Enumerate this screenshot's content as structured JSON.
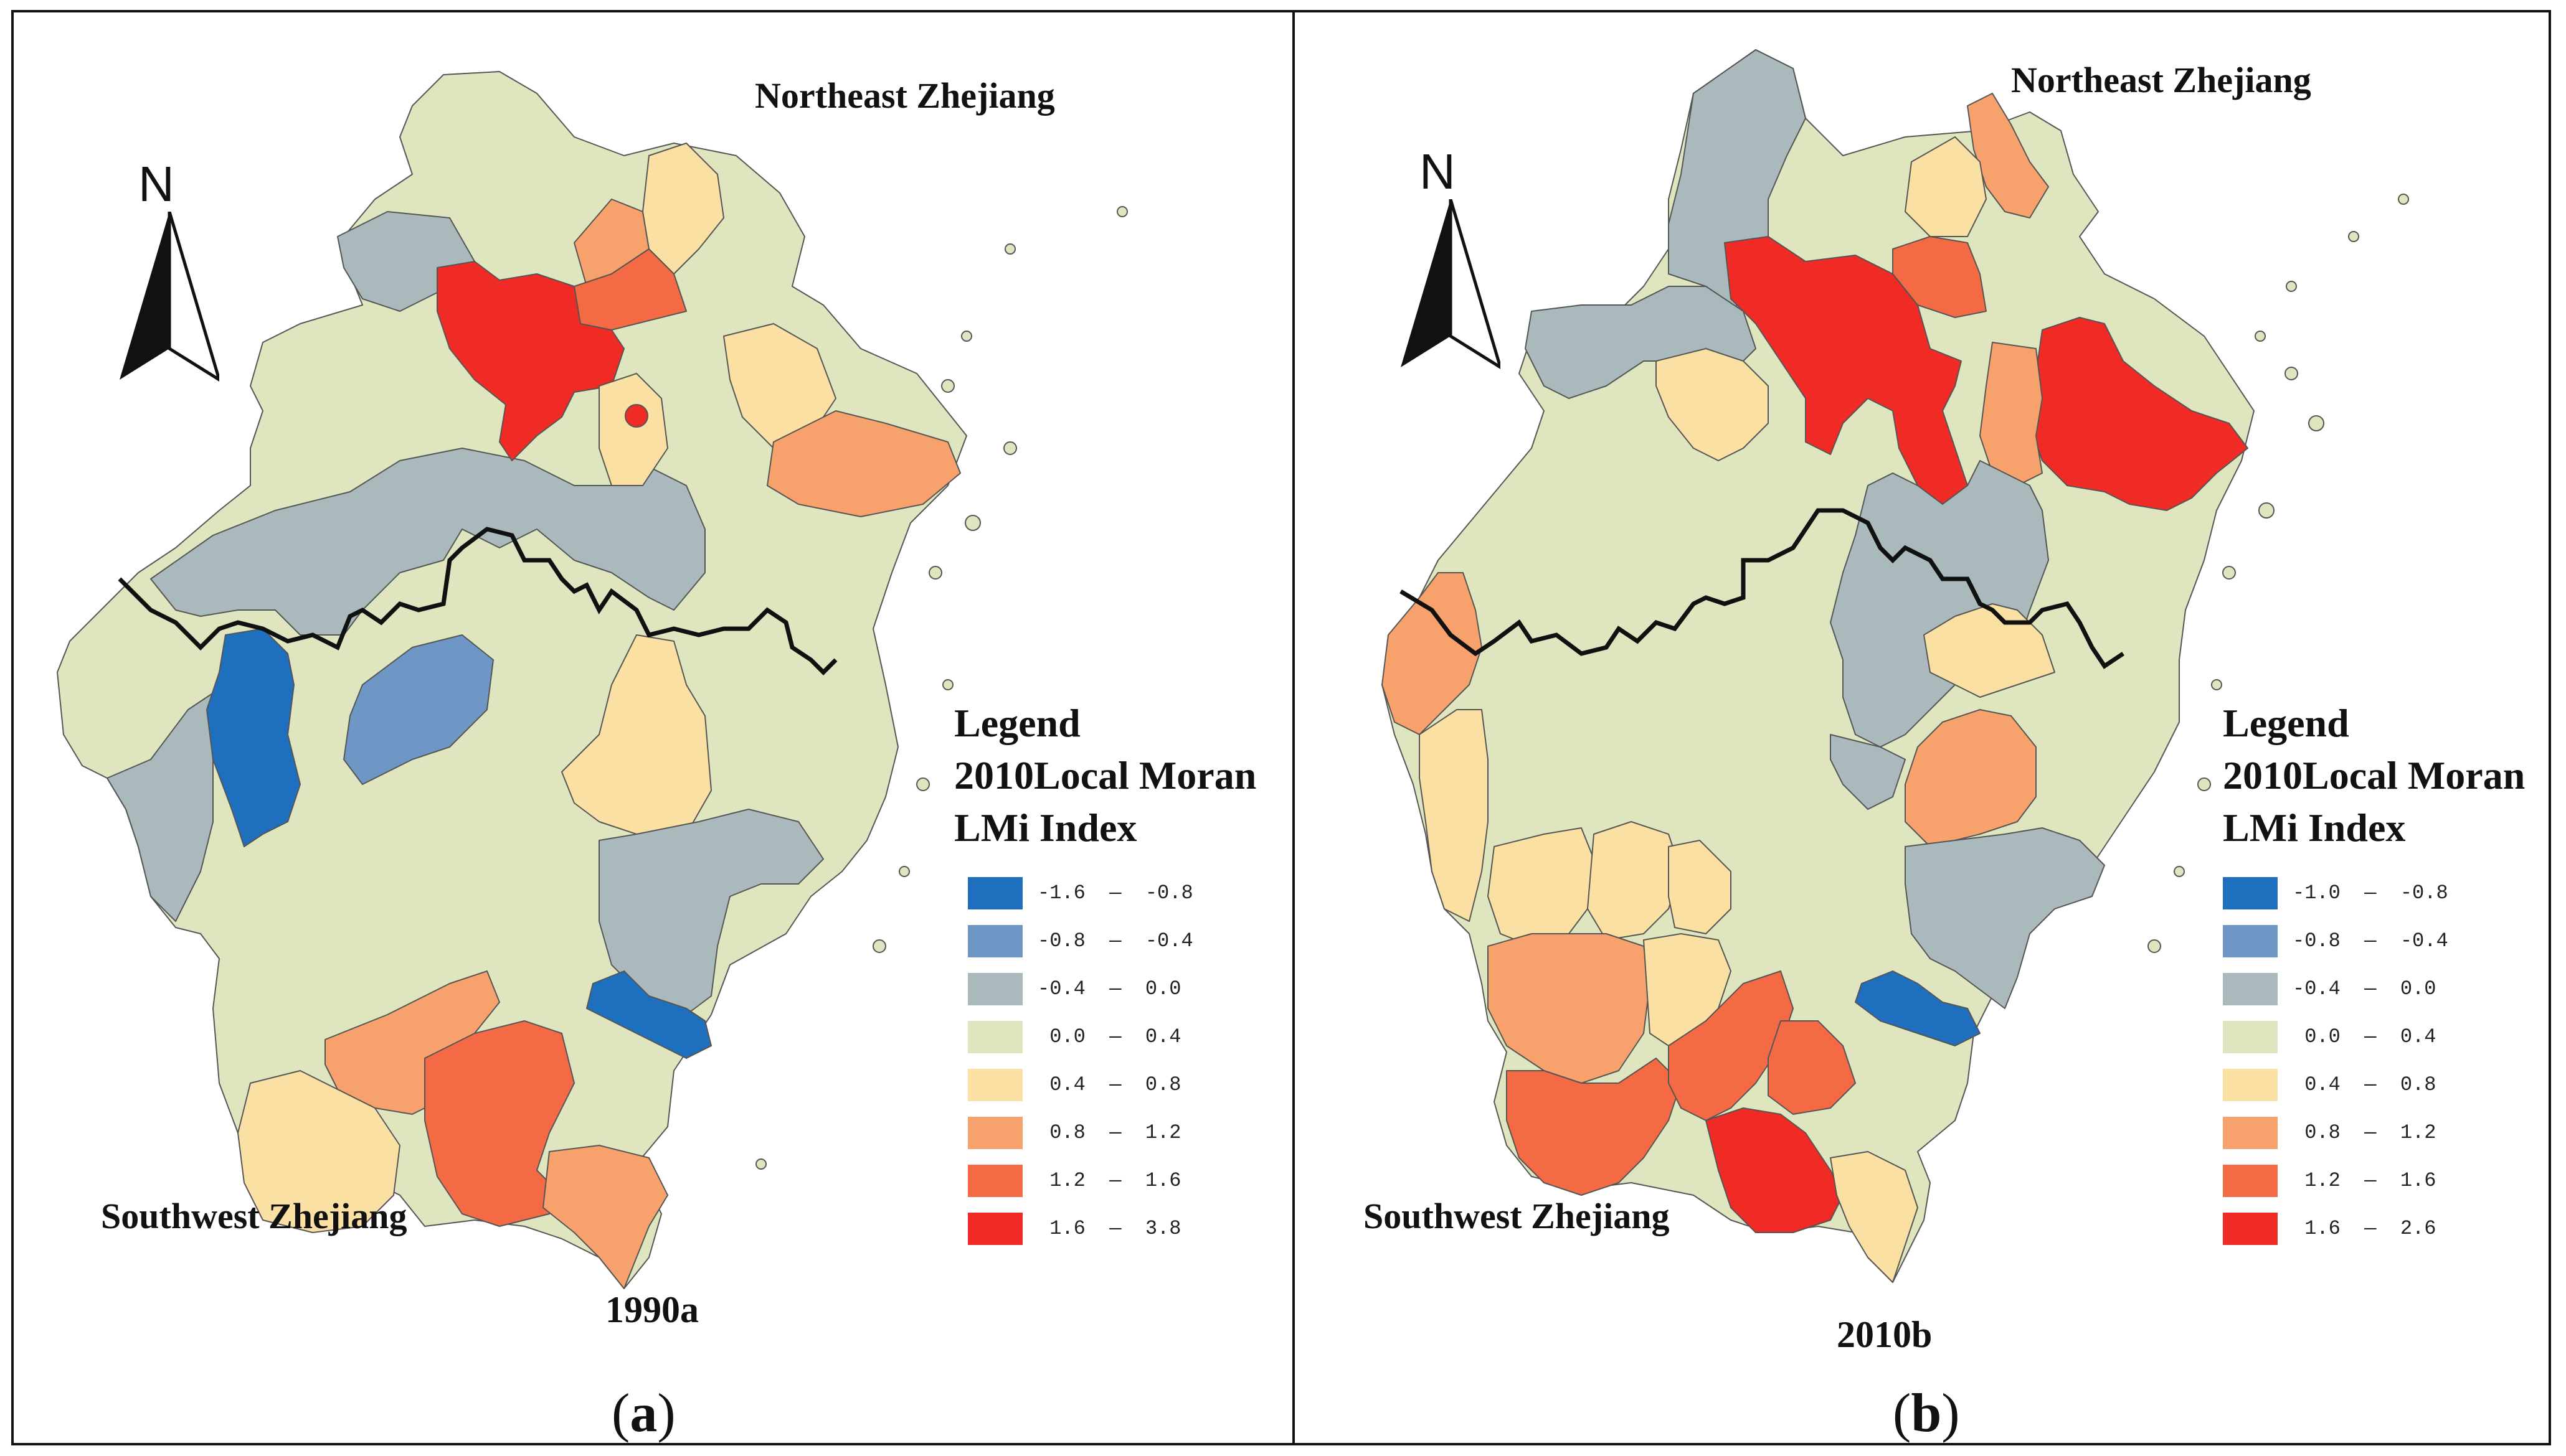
{
  "colors": {
    "c1": "#1f6fbf",
    "c2": "#6f97c6",
    "c3": "#a9b9bc",
    "c4": "#dfe6bf",
    "c5": "#fbe0a3",
    "c6": "#f7a26c",
    "c7": "#f46a44",
    "c8": "#f02a25",
    "border": "#111111"
  },
  "panels": [
    {
      "region_ne": "Northeast Zhejiang",
      "region_sw": "Southwest Zhejiang",
      "year": "1990a",
      "letter_open": "(",
      "letter": "a",
      "letter_close": ")",
      "north": "N",
      "legend": {
        "title1": "Legend",
        "title2": "2010Local Moran",
        "title3": "LMi Index",
        "classes": [
          {
            "range": "-1.6  —  -0.8",
            "color": "#1f6fbf"
          },
          {
            "range": "-0.8  —  -0.4",
            "color": "#6f97c6"
          },
          {
            "range": "-0.4  —  0.0",
            "color": "#a9b9bc"
          },
          {
            "range": " 0.0  —  0.4",
            "color": "#dfe6bf"
          },
          {
            "range": " 0.4  —  0.8",
            "color": "#fbe0a3"
          },
          {
            "range": " 0.8  —  1.2",
            "color": "#f7a26c"
          },
          {
            "range": " 1.2  —  1.6",
            "color": "#f46a44"
          },
          {
            "range": " 1.6  —  3.8",
            "color": "#f02a25"
          }
        ]
      }
    },
    {
      "region_ne": "Northeast Zhejiang",
      "region_sw": "Southwest Zhejiang",
      "year": "2010b",
      "letter_open": "(",
      "letter": "b",
      "letter_close": ")",
      "north": "N",
      "legend": {
        "title1": "Legend",
        "title2": "2010Local Moran",
        "title3": "LMi Index",
        "classes": [
          {
            "range": "-1.0  —  -0.8",
            "color": "#1f6fbf"
          },
          {
            "range": "-0.8  —  -0.4",
            "color": "#6f97c6"
          },
          {
            "range": "-0.4  —  0.0",
            "color": "#a9b9bc"
          },
          {
            "range": " 0.0  —  0.4",
            "color": "#dfe6bf"
          },
          {
            "range": " 0.4  —  0.8",
            "color": "#fbe0a3"
          },
          {
            "range": " 0.8  —  1.2",
            "color": "#f7a26c"
          },
          {
            "range": " 1.2  —  1.6",
            "color": "#f46a44"
          },
          {
            "range": " 1.6  —  2.6",
            "color": "#f02a25"
          }
        ]
      }
    }
  ]
}
